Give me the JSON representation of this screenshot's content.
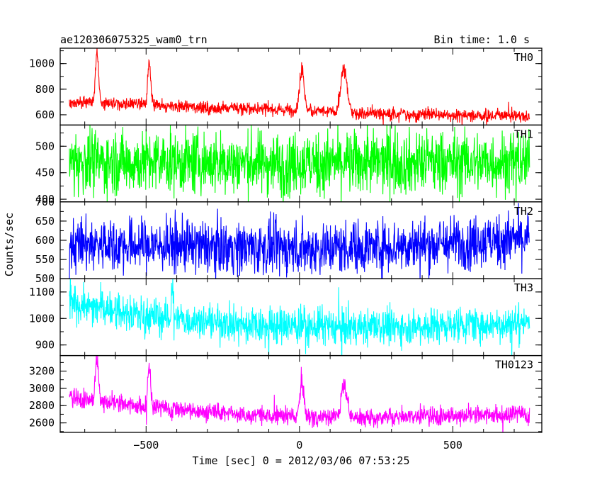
{
  "header": {
    "title": "ae120306075325_wam0_trn",
    "bin_time": "Bin time: 1.0 s"
  },
  "chart_data": {
    "type": "line",
    "xlabel": "Time [sec] 0 = 2012/03/06 07:53:25",
    "ylabel": "Counts/sec",
    "xlim": [
      -780,
      790
    ],
    "xticks": [
      {
        "v": -500,
        "label": "−500"
      },
      {
        "v": 0,
        "label": "0"
      },
      {
        "v": 500,
        "label": "500"
      }
    ],
    "panels": [
      {
        "name": "TH0",
        "color": "#ff0000",
        "ylim": [
          520,
          1120
        ],
        "yticks": [
          {
            "v": 600,
            "label": "600"
          },
          {
            "v": 800,
            "label": "800"
          },
          {
            "v": 1000,
            "label": "1000"
          }
        ],
        "baseline": [
          [
            -750,
            700
          ],
          [
            -400,
            665
          ],
          [
            0,
            635
          ],
          [
            140,
            615
          ],
          [
            750,
            590
          ]
        ],
        "noise": 25,
        "peaks": [
          {
            "t": -660,
            "h": 1120,
            "w": 5
          },
          {
            "t": -490,
            "h": 1000,
            "w": 5
          },
          {
            "t": 8,
            "h": 990,
            "w": 7
          },
          {
            "t": 145,
            "h": 960,
            "w": 10
          }
        ]
      },
      {
        "name": "TH1",
        "color": "#00ff00",
        "ylim": [
          395,
          540
        ],
        "yticks": [
          {
            "v": 400,
            "label": "400"
          },
          {
            "v": 450,
            "label": "450"
          },
          {
            "v": 500,
            "label": "500"
          }
        ],
        "baseline": [
          [
            -750,
            470
          ],
          [
            0,
            468
          ],
          [
            750,
            470
          ]
        ],
        "noise": 30,
        "peaks": []
      },
      {
        "name": "TH2",
        "color": "#0000ff",
        "ylim": [
          500,
          700
        ],
        "yticks": [
          {
            "v": 500,
            "label": "500"
          },
          {
            "v": 550,
            "label": "550"
          },
          {
            "v": 600,
            "label": "600"
          },
          {
            "v": 650,
            "label": "650"
          },
          {
            "v": 700,
            "label": "700"
          }
        ],
        "baseline": [
          [
            -750,
            590
          ],
          [
            -200,
            582
          ],
          [
            0,
            578
          ],
          [
            400,
            588
          ],
          [
            750,
            605
          ]
        ],
        "noise": 35,
        "peaks": []
      },
      {
        "name": "TH3",
        "color": "#00ffff",
        "ylim": [
          860,
          1150
        ],
        "yticks": [
          {
            "v": 900,
            "label": "900"
          },
          {
            "v": 1000,
            "label": "1000"
          },
          {
            "v": 1100,
            "label": "1100"
          }
        ],
        "baseline": [
          [
            -750,
            1060
          ],
          [
            -500,
            1010
          ],
          [
            -200,
            975
          ],
          [
            200,
            965
          ],
          [
            750,
            985
          ]
        ],
        "noise": 35,
        "peaks": [
          {
            "t": -415,
            "h": 1130,
            "w": 3
          }
        ]
      },
      {
        "name": "TH0123",
        "color": "#ff00ff",
        "ylim": [
          2490,
          3380
        ],
        "yticks": [
          {
            "v": 2600,
            "label": "2600"
          },
          {
            "v": 2800,
            "label": "2800"
          },
          {
            "v": 3000,
            "label": "3000"
          },
          {
            "v": 3200,
            "label": "3200"
          }
        ],
        "baseline": [
          [
            -750,
            2900
          ],
          [
            -500,
            2780
          ],
          [
            -200,
            2700
          ],
          [
            140,
            2660
          ],
          [
            750,
            2700
          ]
        ],
        "noise": 55,
        "peaks": [
          {
            "t": -660,
            "h": 3360,
            "w": 5
          },
          {
            "t": -490,
            "h": 3270,
            "w": 5
          },
          {
            "t": 8,
            "h": 3090,
            "w": 7
          },
          {
            "t": 145,
            "h": 3060,
            "w": 10
          }
        ]
      }
    ]
  }
}
